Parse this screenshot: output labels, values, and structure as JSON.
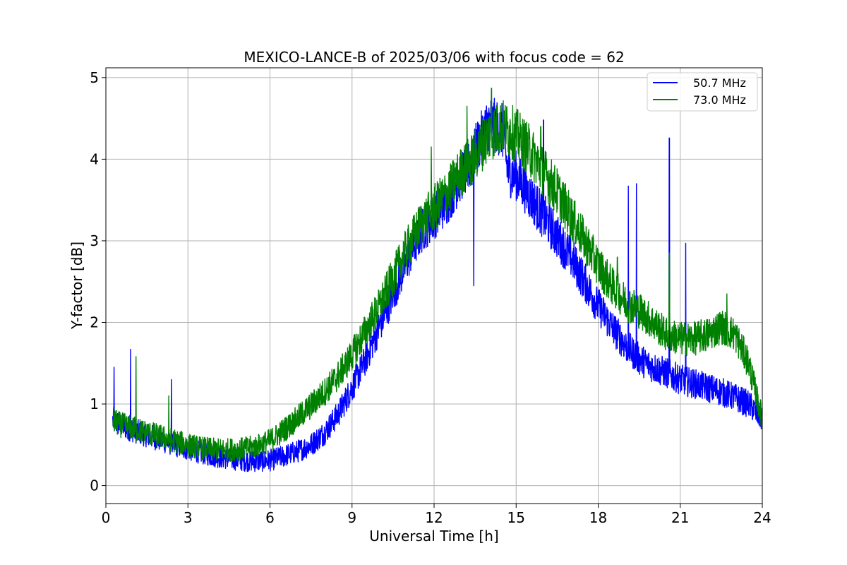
{
  "chart_data": {
    "type": "line",
    "title": "MEXICO-LANCE-B of 2025/03/06 with focus code = 62",
    "xlabel": "Universal Time [h]",
    "ylabel": "Y-factor [dB]",
    "xlim": [
      0,
      24
    ],
    "ylim": [
      -0.22,
      5.12
    ],
    "xticks": [
      0,
      3,
      6,
      9,
      12,
      15,
      18,
      21,
      24
    ],
    "yticks": [
      0,
      1,
      2,
      3,
      4,
      5
    ],
    "grid": true,
    "legend_position": "top-right",
    "series": [
      {
        "name": "50.7 MHz",
        "color": "#0000ff",
        "x": [
          0.25,
          0.5,
          1,
          1.5,
          2,
          2.5,
          3,
          3.5,
          4,
          4.5,
          5,
          5.5,
          6,
          6.5,
          7,
          7.5,
          8,
          8.5,
          9,
          9.5,
          10,
          10.5,
          11,
          11.5,
          12,
          12.5,
          13,
          13.4,
          13.5,
          14,
          14.5,
          14.7,
          15,
          15.5,
          16,
          16.5,
          17,
          17.5,
          18,
          18.5,
          19,
          19.5,
          20,
          20.5,
          21,
          21.5,
          22,
          22.5,
          23,
          23.5,
          24
        ],
        "values": [
          0.8,
          0.75,
          0.68,
          0.62,
          0.56,
          0.5,
          0.45,
          0.4,
          0.36,
          0.33,
          0.31,
          0.3,
          0.31,
          0.36,
          0.42,
          0.5,
          0.65,
          0.88,
          1.2,
          1.55,
          1.95,
          2.35,
          2.75,
          3.1,
          3.3,
          3.5,
          3.8,
          3.95,
          4.1,
          4.45,
          4.35,
          3.85,
          3.8,
          3.55,
          3.3,
          3.05,
          2.8,
          2.5,
          2.2,
          1.95,
          1.72,
          1.55,
          1.45,
          1.38,
          1.3,
          1.25,
          1.2,
          1.15,
          1.08,
          1.0,
          0.82
        ],
        "spikes": [
          [
            0.3,
            1.45
          ],
          [
            0.9,
            1.67
          ],
          [
            2.4,
            1.3
          ],
          [
            13.45,
            2.45
          ],
          [
            16.0,
            4.48
          ],
          [
            19.1,
            3.67
          ],
          [
            19.4,
            3.7
          ],
          [
            20.6,
            4.26
          ],
          [
            21.2,
            2.97
          ]
        ]
      },
      {
        "name": "73.0 MHz",
        "color": "#008000",
        "x": [
          0.25,
          0.5,
          1,
          1.5,
          2,
          2.5,
          3,
          3.5,
          4,
          4.5,
          5,
          5.5,
          6,
          6.5,
          7,
          7.5,
          8,
          8.5,
          9,
          9.5,
          10,
          10.5,
          11,
          11.5,
          12,
          12.5,
          13,
          13.5,
          14,
          14.5,
          15,
          15.5,
          16,
          16.5,
          17,
          17.5,
          18,
          18.5,
          19,
          19.5,
          20,
          20.5,
          21,
          21.5,
          22,
          22.5,
          23,
          23.5,
          24
        ],
        "values": [
          0.8,
          0.75,
          0.7,
          0.65,
          0.6,
          0.55,
          0.5,
          0.46,
          0.44,
          0.44,
          0.45,
          0.48,
          0.55,
          0.68,
          0.82,
          0.98,
          1.15,
          1.35,
          1.6,
          1.9,
          2.2,
          2.55,
          2.9,
          3.2,
          3.4,
          3.6,
          3.85,
          4.05,
          4.3,
          4.4,
          4.3,
          4.1,
          3.85,
          3.6,
          3.3,
          3.0,
          2.7,
          2.45,
          2.25,
          2.15,
          2.0,
          1.85,
          1.8,
          1.8,
          1.85,
          1.95,
          1.85,
          1.5,
          0.8
        ],
        "spikes": [
          [
            1.1,
            1.58
          ],
          [
            2.3,
            1.1
          ],
          [
            11.9,
            4.15
          ],
          [
            13.2,
            4.65
          ],
          [
            14.1,
            4.87
          ],
          [
            15.9,
            4.4
          ],
          [
            18.7,
            2.8
          ],
          [
            20.6,
            2.85
          ],
          [
            22.7,
            2.35
          ]
        ]
      }
    ]
  }
}
